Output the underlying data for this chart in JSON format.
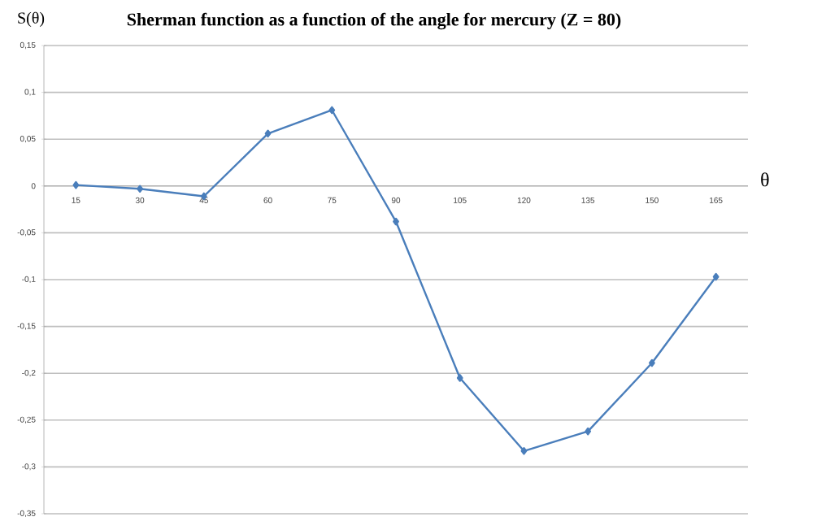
{
  "chart_data": {
    "type": "line",
    "title": "Sherman function as a function of the angle for mercury (Z = 80)",
    "xlabel": "θ",
    "ylabel": "S(θ)",
    "categories": [
      "15",
      "30",
      "45",
      "60",
      "75",
      "90",
      "105",
      "120",
      "135",
      "150",
      "165"
    ],
    "series": [
      {
        "color": "#4a7ebb",
        "values": [
          0.001,
          -0.003,
          -0.011,
          0.056,
          0.081,
          -0.038,
          -0.205,
          -0.283,
          -0.262,
          -0.189,
          -0.097
        ]
      }
    ],
    "ylim": [
      -0.35,
      0.15
    ],
    "yticks": [
      {
        "value": -0.35,
        "label": "-0,35"
      },
      {
        "value": -0.3,
        "label": "-0,3"
      },
      {
        "value": -0.25,
        "label": "-0,25"
      },
      {
        "value": -0.2,
        "label": "-0,2"
      },
      {
        "value": -0.15,
        "label": "-0,15"
      },
      {
        "value": -0.1,
        "label": "-0,1"
      },
      {
        "value": -0.05,
        "label": "-0,05"
      },
      0,
      {
        "value": 0.05,
        "label": "0,05"
      },
      {
        "value": 0.1,
        "label": "0,1"
      },
      {
        "value": 0.15,
        "label": "0,15"
      }
    ],
    "grid": "y",
    "marker": "diamond",
    "line_style": "solid"
  }
}
